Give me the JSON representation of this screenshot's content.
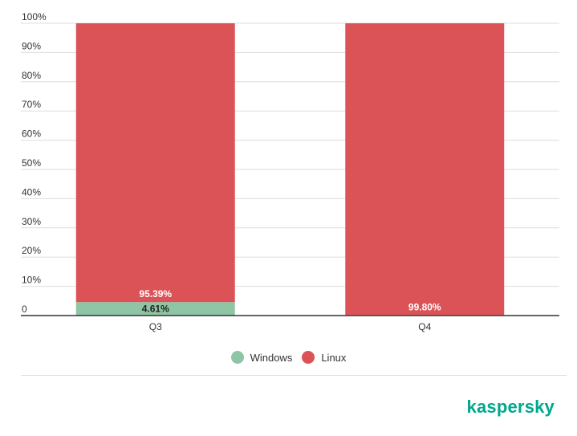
{
  "chart_data": {
    "type": "bar",
    "stacked": true,
    "categories": [
      "Q3",
      "Q4"
    ],
    "series": [
      {
        "name": "Windows",
        "color": "#8fc4a4",
        "values": [
          4.61,
          0.2
        ],
        "labels": [
          "4.61%",
          ""
        ],
        "label_color": "#222222"
      },
      {
        "name": "Linux",
        "color": "#db5356",
        "values": [
          95.39,
          99.8
        ],
        "labels": [
          "95.39%",
          "99.80%"
        ],
        "label_color": "#ffffff"
      }
    ],
    "y_ticks": [
      "0",
      "10%",
      "20%",
      "30%",
      "40%",
      "50%",
      "60%",
      "70%",
      "80%",
      "90%",
      "100%"
    ],
    "ylim": [
      0,
      100
    ],
    "grid": true,
    "legend_position": "bottom-center"
  },
  "brand": "kaspersky"
}
